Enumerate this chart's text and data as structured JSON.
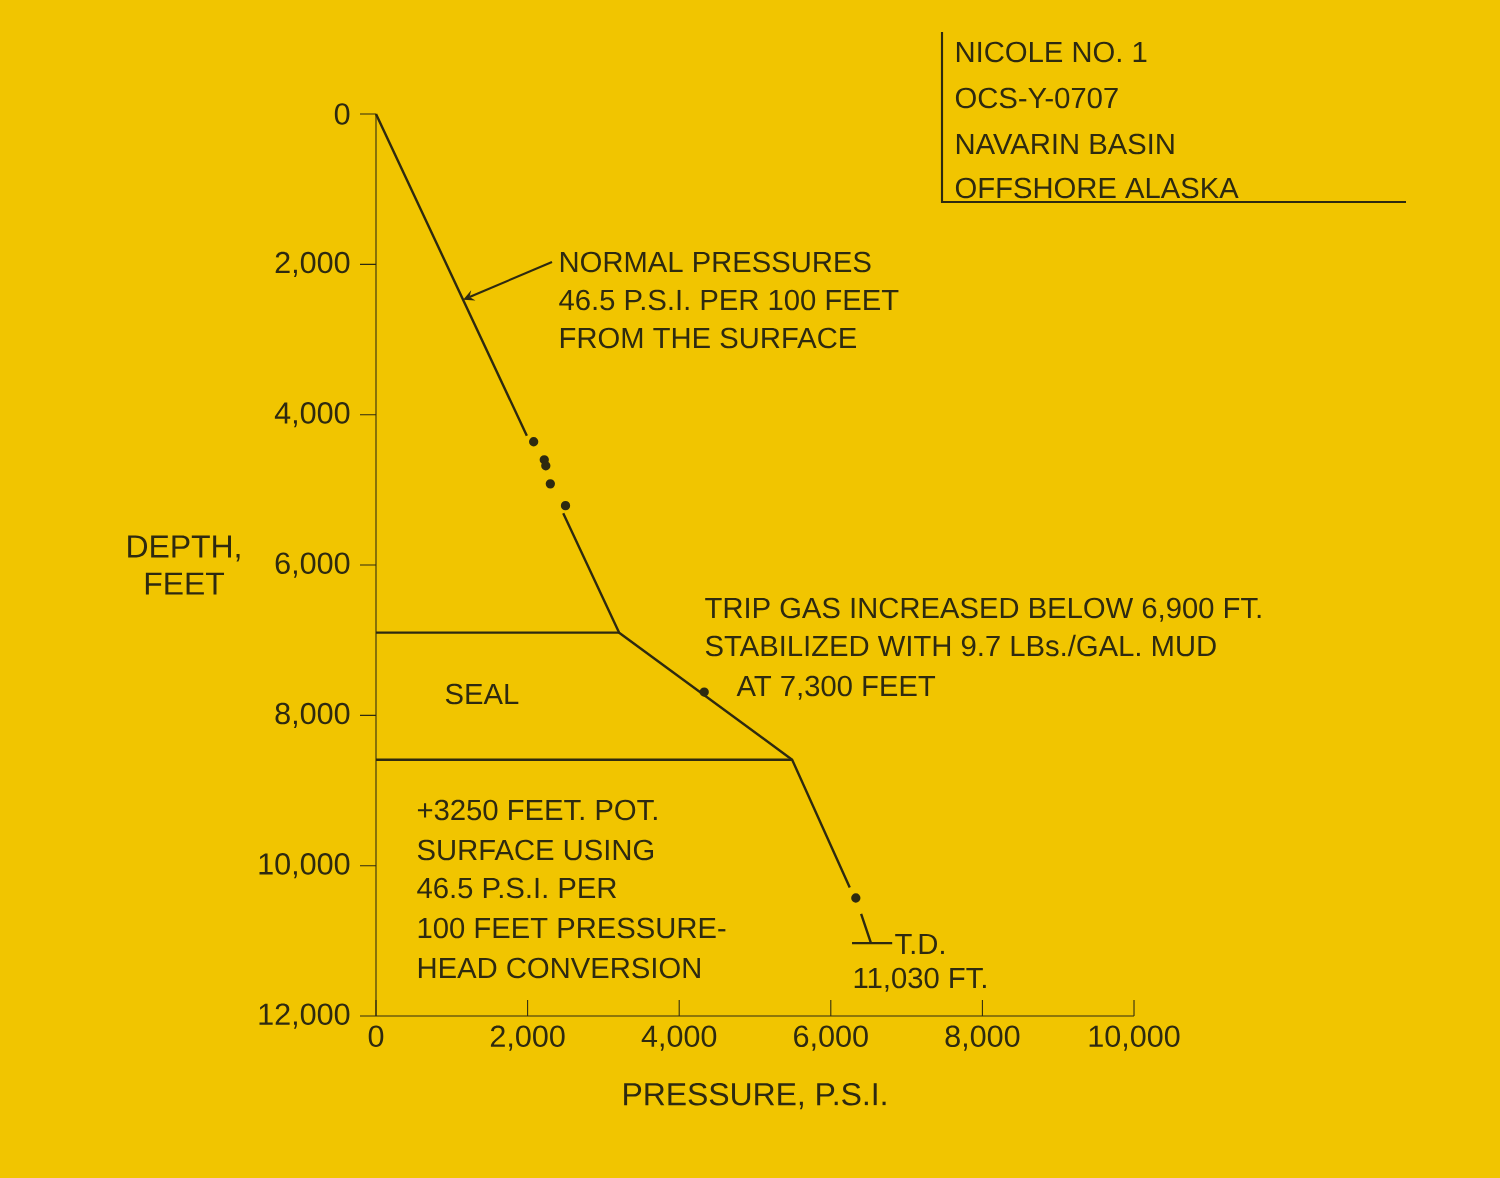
{
  "chart_data": {
    "type": "line",
    "xlabel": "PRESSURE, P.S.I.",
    "ylabel": "DEPTH, FEET",
    "xlim": [
      0,
      10000
    ],
    "ylim": [
      12000,
      0
    ],
    "xticks": [
      0,
      {
        "value": 2000,
        "label": "2,000"
      },
      {
        "value": 4000,
        "label": "4,000"
      },
      {
        "value": 6000,
        "label": "6,000"
      },
      {
        "value": 8000,
        "label": "8,000"
      },
      {
        "value": 10000,
        "label": "10,000"
      }
    ],
    "yticks": [
      0,
      {
        "value": 2000,
        "label": "2,000"
      },
      {
        "value": 4000,
        "label": "4,000"
      },
      {
        "value": 6000,
        "label": "6,000"
      },
      {
        "value": 8000,
        "label": "8,000"
      },
      {
        "value": 10000,
        "label": "10,000"
      },
      {
        "value": 12000,
        "label": "12,000"
      }
    ],
    "series": [
      {
        "color": "#2e2a10",
        "x": [
          0,
          1990,
          null,
          2470,
          3208,
          5490,
          6250,
          null,
          6400,
          6530
        ],
        "values": [
          0,
          4280,
          null,
          5310,
          6900,
          8590,
          10290,
          null,
          10640,
          11030
        ]
      },
      {
        "type": "scatter",
        "marker": "circle",
        "color": "#2e2a10",
        "x": [
          2080,
          2220,
          2240,
          2300,
          2500,
          4330,
          6330
        ],
        "values": [
          4360,
          4600,
          4680,
          4920,
          5210,
          7690,
          10430
        ]
      },
      {
        "color": "#2e2a10",
        "x": [
          0,
          3208
        ],
        "values": [
          6900,
          6900
        ]
      },
      {
        "color": "#2e2a10",
        "x": [
          0,
          5490
        ],
        "values": [
          8590,
          8590
        ]
      },
      {
        "color": "#2e2a10",
        "x": [
          6280,
          6810
        ],
        "values": [
          11030,
          11030
        ]
      }
    ],
    "annotations": [
      {
        "text": "NORMAL PRESSURES",
        "x": 1150,
        "y": 2470
      },
      "46.5 P.S.I. PER 100 FEET",
      "FROM THE SURFACE",
      "TRIP GAS INCREASED BELOW 6,900 FT.",
      "STABILIZED WITH 9.7 LBs./GAL. MUD",
      "AT 7,300 FEET",
      "SEAL",
      "+3250 FEET. POT.",
      "SURFACE USING",
      "46.5 P.S.I. PER",
      "100 FEET PRESSURE-",
      "HEAD CONVERSION",
      {
        "text": "T.D.",
        "x": 6530,
        "y": 11030
      },
      "11,030 FT.",
      "NICOLE NO. 1",
      "OCS-Y-0707",
      "NAVARIN BASIN",
      "OFFSHORE ALASKA"
    ]
  }
}
